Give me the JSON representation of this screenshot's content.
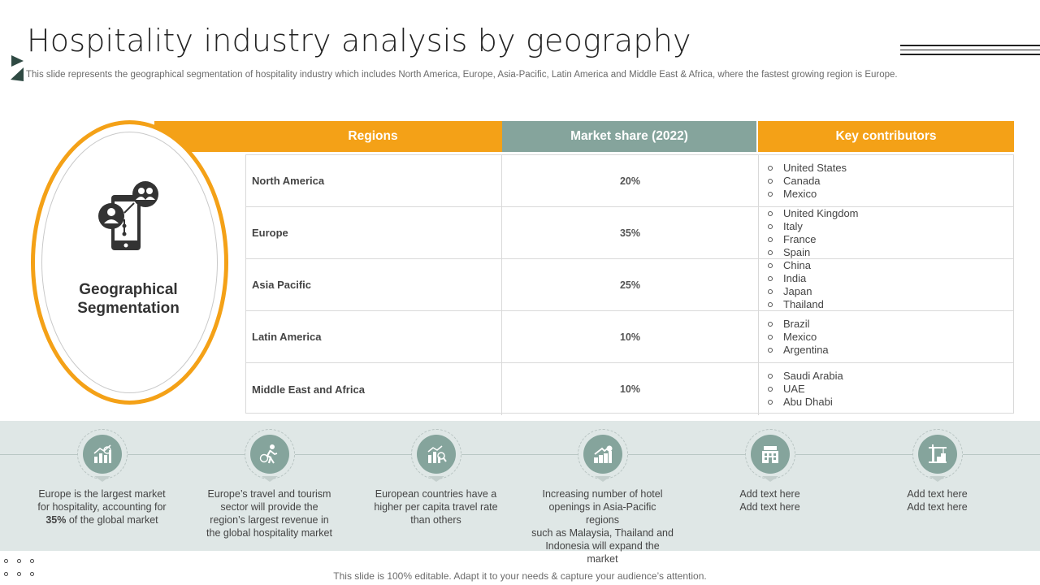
{
  "slide": {
    "title": "Hospitality industry analysis by geography",
    "subtitle": "This slide represents the geographical segmentation of hospitality industry which includes North America, Europe, Asia-Pacific, Latin America and Middle East & Africa,  where the fastest growing region is Europe.",
    "footer": "This slide is 100% editable. Adapt it to your needs & capture your audience’s attention."
  },
  "oval": {
    "label_line1": "Geographical",
    "label_line2": "Segmentation",
    "icon": "mobile-network-people-icon"
  },
  "table": {
    "headers": {
      "regions": "Regions",
      "market_share": "Market share (2022)",
      "key_contributors": "Key contributors"
    },
    "rows": [
      {
        "region": "North America",
        "share": "20%",
        "contributors": [
          "United States",
          "Canada",
          "Mexico"
        ]
      },
      {
        "region": "Europe",
        "share": "35%",
        "contributors": [
          "United Kingdom",
          "Italy",
          "France",
          "Spain"
        ]
      },
      {
        "region": "Asia Pacific",
        "share": "25%",
        "contributors": [
          "China",
          "India",
          "Japan",
          "Thailand"
        ]
      },
      {
        "region": "Latin America",
        "share": "10%",
        "contributors": [
          "Brazil",
          "Mexico",
          "Argentina"
        ]
      },
      {
        "region": "Middle East and Africa",
        "share": "10%",
        "contributors": [
          "Saudi Arabia",
          "UAE",
          "Abu Dhabi"
        ]
      }
    ]
  },
  "features": [
    {
      "icon": "growth-chart-icon",
      "lines": [
        "Europe is the largest market",
        "for hospitality, accounting for"
      ],
      "last_bold": "35%",
      "last_rest": " of the global market"
    },
    {
      "icon": "traveler-icon",
      "lines": [
        "Europe’s travel  and tourism",
        "sector will provide  the",
        "region’s largest revenue  in",
        "the global hospitality market"
      ]
    },
    {
      "icon": "analytics-icon",
      "lines": [
        "European  countries have  a",
        "higher per capita travel rate",
        "than others"
      ]
    },
    {
      "icon": "rising-revenue-icon",
      "lines": [
        "Increasing number of hotel",
        "openings in Asia-Pacific regions",
        "such as Malaysia, Thailand  and",
        "Indonesia  will expand the market"
      ]
    },
    {
      "icon": "hotel-building-icon",
      "lines": [
        "Add text here",
        "Add text here"
      ]
    },
    {
      "icon": "construction-crane-icon",
      "lines": [
        "Add text here",
        "Add text here"
      ]
    }
  ],
  "colors": {
    "accent_orange": "#f4a117",
    "accent_sage": "#85a49c",
    "band": "#dfe7e6"
  }
}
